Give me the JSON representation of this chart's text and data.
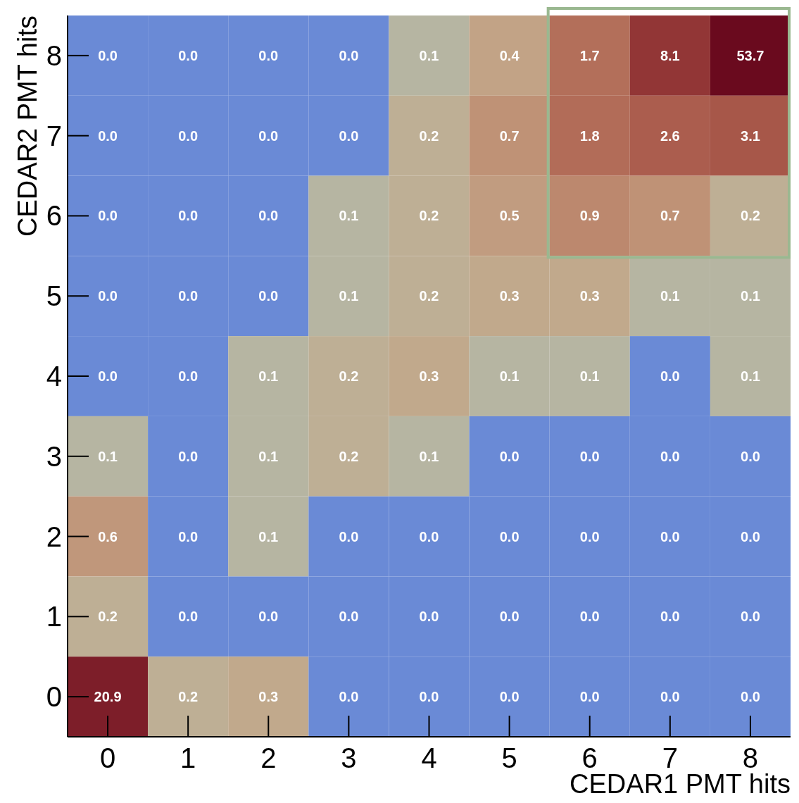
{
  "chart_data": {
    "type": "heatmap",
    "xlabel": "CEDAR1 PMT hits",
    "ylabel": "CEDAR2 PMT hits",
    "categories": [
      "0",
      "1",
      "2",
      "3",
      "4",
      "5",
      "6",
      "7",
      "8"
    ],
    "y_categories": [
      "8",
      "7",
      "6",
      "5",
      "4",
      "3",
      "2",
      "1",
      "0"
    ],
    "cells": [
      [
        0.0,
        0.0,
        0.0,
        0.0,
        0.1,
        0.4,
        1.7,
        8.1,
        53.7
      ],
      [
        0.0,
        0.0,
        0.0,
        0.0,
        0.2,
        0.7,
        1.8,
        2.6,
        3.1
      ],
      [
        0.0,
        0.0,
        0.0,
        0.1,
        0.2,
        0.5,
        0.9,
        0.7,
        0.2
      ],
      [
        0.0,
        0.0,
        0.0,
        0.1,
        0.2,
        0.3,
        0.3,
        0.1,
        0.1
      ],
      [
        0.0,
        0.0,
        0.1,
        0.2,
        0.3,
        0.1,
        0.1,
        0.0,
        0.1
      ],
      [
        0.1,
        0.0,
        0.1,
        0.2,
        0.1,
        0.0,
        0.0,
        0.0,
        0.0
      ],
      [
        0.6,
        0.0,
        0.1,
        0.0,
        0.0,
        0.0,
        0.0,
        0.0,
        0.0
      ],
      [
        0.2,
        0.0,
        0.0,
        0.0,
        0.0,
        0.0,
        0.0,
        0.0,
        0.0
      ],
      [
        20.9,
        0.2,
        0.3,
        0.0,
        0.0,
        0.0,
        0.0,
        0.0,
        0.0
      ]
    ],
    "cell_labels": [
      [
        "0.0",
        "0.0",
        "0.0",
        "0.0",
        "0.1",
        "0.4",
        "1.7",
        "8.1",
        "53.7"
      ],
      [
        "0.0",
        "0.0",
        "0.0",
        "0.0",
        "0.2",
        "0.7",
        "1.8",
        "2.6",
        "3.1"
      ],
      [
        "0.0",
        "0.0",
        "0.0",
        "0.1",
        "0.2",
        "0.5",
        "0.9",
        "0.7",
        "0.2"
      ],
      [
        "0.0",
        "0.0",
        "0.0",
        "0.1",
        "0.2",
        "0.3",
        "0.3",
        "0.1",
        "0.1"
      ],
      [
        "0.0",
        "0.0",
        "0.1",
        "0.2",
        "0.3",
        "0.1",
        "0.1",
        "0.0",
        "0.1"
      ],
      [
        "0.1",
        "0.0",
        "0.1",
        "0.2",
        "0.1",
        "0.0",
        "0.0",
        "0.0",
        "0.0"
      ],
      [
        "0.6",
        "0.0",
        "0.1",
        "0.0",
        "0.0",
        "0.0",
        "0.0",
        "0.0",
        "0.0"
      ],
      [
        "0.2",
        "0.0",
        "0.0",
        "0.0",
        "0.0",
        "0.0",
        "0.0",
        "0.0",
        "0.0"
      ],
      [
        "20.9",
        "0.2",
        "0.3",
        "0.0",
        "0.0",
        "0.0",
        "0.0",
        "0.0",
        "0.0"
      ]
    ]
  }
}
